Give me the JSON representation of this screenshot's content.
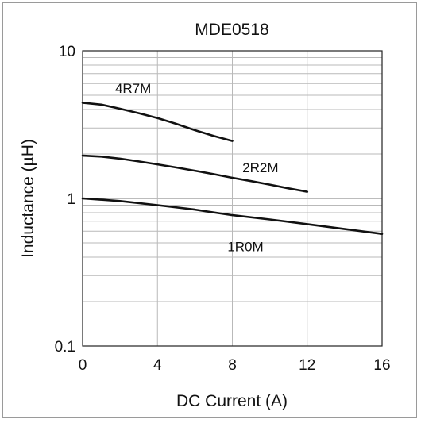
{
  "chart_data": {
    "type": "line",
    "title": "MDE0518",
    "xlabel": "DC Current (A)",
    "ylabel": "Inductance (µH)",
    "xlim": [
      0,
      16
    ],
    "ylim": [
      0.1,
      10
    ],
    "y_scale": "log",
    "x_ticks": [
      0,
      4,
      8,
      12,
      16
    ],
    "x_tick_labels": [
      "0",
      "4",
      "8",
      "12",
      "16"
    ],
    "y_ticks": [
      0.1,
      1,
      10
    ],
    "y_tick_labels": [
      "0.1",
      "1",
      "10"
    ],
    "grid": true,
    "series": [
      {
        "name": "4R7M",
        "x": [
          0,
          1,
          2,
          3,
          4,
          5,
          6,
          7,
          8
        ],
        "y": [
          4.45,
          4.32,
          4.05,
          3.78,
          3.5,
          3.2,
          2.9,
          2.65,
          2.45
        ]
      },
      {
        "name": "2R2M",
        "x": [
          0,
          1,
          2,
          3,
          4,
          5,
          6,
          7,
          8,
          9,
          10,
          11,
          12
        ],
        "y": [
          1.95,
          1.92,
          1.86,
          1.78,
          1.7,
          1.62,
          1.54,
          1.46,
          1.38,
          1.31,
          1.24,
          1.17,
          1.11
        ]
      },
      {
        "name": "1R0M",
        "x": [
          0,
          2,
          4,
          6,
          8,
          10,
          12,
          14,
          16
        ],
        "y": [
          1.0,
          0.96,
          0.9,
          0.84,
          0.77,
          0.72,
          0.67,
          0.62,
          0.575
        ]
      }
    ]
  }
}
